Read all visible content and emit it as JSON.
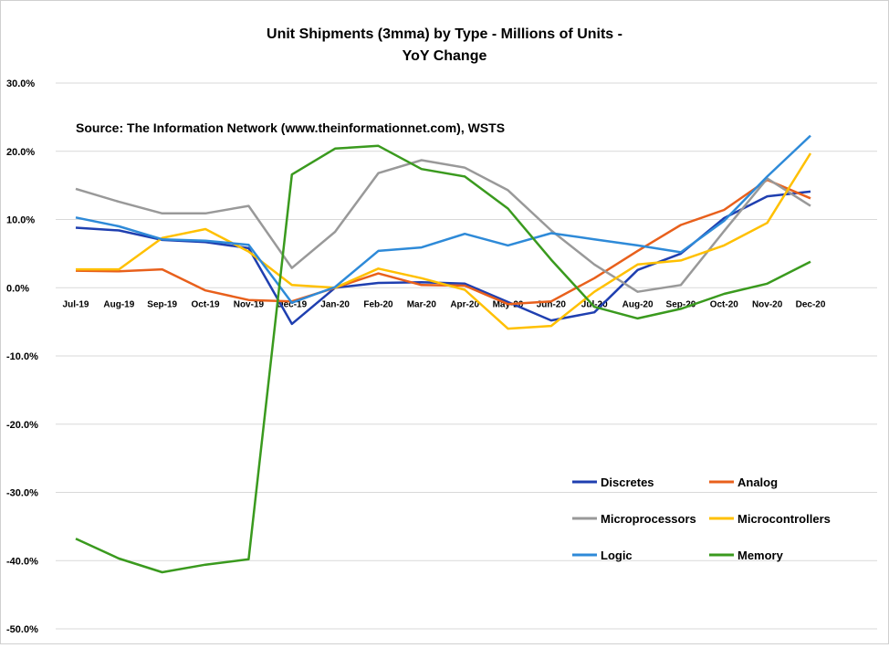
{
  "chart_data": {
    "type": "line",
    "title_line1": "Unit Shipments (3mma) by Type - Millions of Units -",
    "title_line2": "YoY Change",
    "annotation": "Source: The Information Network (www.theinformationnet.com), WSTS",
    "xlabel": "",
    "ylabel": "",
    "ylim": [
      -50,
      30
    ],
    "y_ticks": [
      {
        "value": 30,
        "label": "30.0%"
      },
      {
        "value": 20,
        "label": "20.0%"
      },
      {
        "value": 10,
        "label": "10.0%"
      },
      {
        "value": 0,
        "label": "0.0%"
      },
      {
        "value": -10,
        "label": "-10.0%"
      },
      {
        "value": -20,
        "label": "-20.0%"
      },
      {
        "value": -30,
        "label": "-30.0%"
      },
      {
        "value": -40,
        "label": "-40.0%"
      },
      {
        "value": -50,
        "label": "-50.0%"
      }
    ],
    "grid": true,
    "legend_position": "bottom-right",
    "categories": [
      "Jul-19",
      "Aug-19",
      "Sep-19",
      "Oct-19",
      "Nov-19",
      "Dec-19",
      "Jan-20",
      "Feb-20",
      "Mar-20",
      "Apr-20",
      "May-20",
      "Jun-20",
      "Jul-20",
      "Aug-20",
      "Sep-20",
      "Oct-20",
      "Nov-20",
      "Dec-20"
    ],
    "series": [
      {
        "name": "Discretes",
        "color": "#1f3fb0",
        "values": [
          8.8,
          8.4,
          7.0,
          6.7,
          5.8,
          -5.3,
          0.0,
          0.7,
          0.8,
          0.6,
          -2.1,
          -4.8,
          -3.6,
          2.6,
          5.0,
          10.2,
          13.4,
          14.1
        ]
      },
      {
        "name": "Analog",
        "color": "#e8601c",
        "values": [
          2.5,
          2.4,
          2.7,
          -0.4,
          -1.8,
          -2.0,
          0.0,
          2.1,
          0.4,
          0.3,
          -2.4,
          -2.0,
          1.4,
          5.4,
          9.2,
          11.4,
          15.8,
          13.1
        ]
      },
      {
        "name": "Microprocessors",
        "color": "#999999",
        "values": [
          14.5,
          12.6,
          10.9,
          10.9,
          12.0,
          2.9,
          8.2,
          16.8,
          18.7,
          17.6,
          14.3,
          8.4,
          3.4,
          -0.6,
          0.4,
          8.3,
          16.0,
          12.0
        ]
      },
      {
        "name": "Microcontrollers",
        "color": "#ffc000",
        "values": [
          2.7,
          2.7,
          7.3,
          8.6,
          5.3,
          0.4,
          0.0,
          2.8,
          1.4,
          -0.3,
          -6.0,
          -5.6,
          -0.6,
          3.4,
          4.0,
          6.2,
          9.5,
          19.7
        ]
      },
      {
        "name": "Logic",
        "color": "#2e8ad8",
        "values": [
          10.3,
          9.0,
          7.1,
          6.9,
          6.3,
          -2.2,
          0.1,
          5.4,
          5.9,
          7.9,
          6.2,
          8.0,
          7.1,
          6.2,
          5.2,
          9.8,
          16.3,
          22.3
        ]
      },
      {
        "name": "Memory",
        "color": "#3a9a1e",
        "values": [
          -36.8,
          -39.7,
          -41.7,
          -40.6,
          -39.8,
          16.6,
          20.4,
          20.8,
          17.4,
          16.3,
          11.6,
          4.1,
          -2.8,
          -4.5,
          -3.1,
          -0.9,
          0.6,
          3.8
        ]
      }
    ]
  }
}
